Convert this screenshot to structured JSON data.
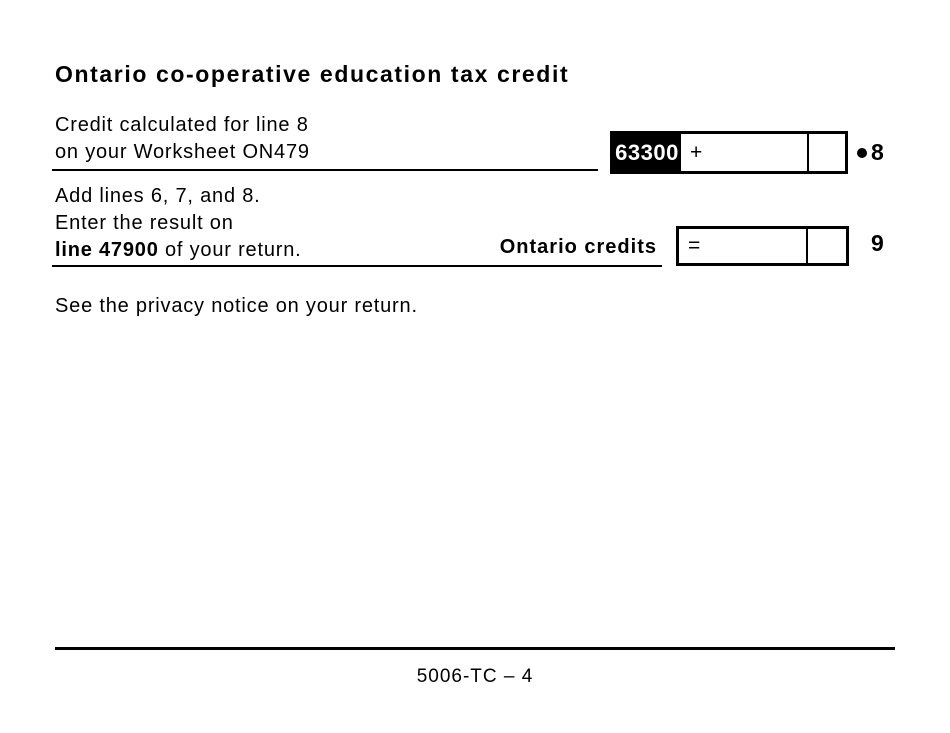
{
  "title": "Ontario co-operative education tax credit",
  "row8": {
    "label_line1": "Credit calculated for line 8",
    "label_line2": "on your Worksheet ON479",
    "field_code": "63300",
    "operator": "+",
    "amount": "",
    "cents": "",
    "line_number": "8"
  },
  "row9": {
    "label_line1": "Add lines 6, 7, and 8.",
    "label_line2": "Enter the result on",
    "label_line3_bold": "line 47900",
    "label_line3_rest": " of your return.",
    "side_label": "Ontario credits",
    "operator": "=",
    "amount": "",
    "cents": "",
    "line_number": "9"
  },
  "privacy_notice": "See the privacy notice on your return.",
  "footer": {
    "page_id": "5006-TC – 4"
  }
}
